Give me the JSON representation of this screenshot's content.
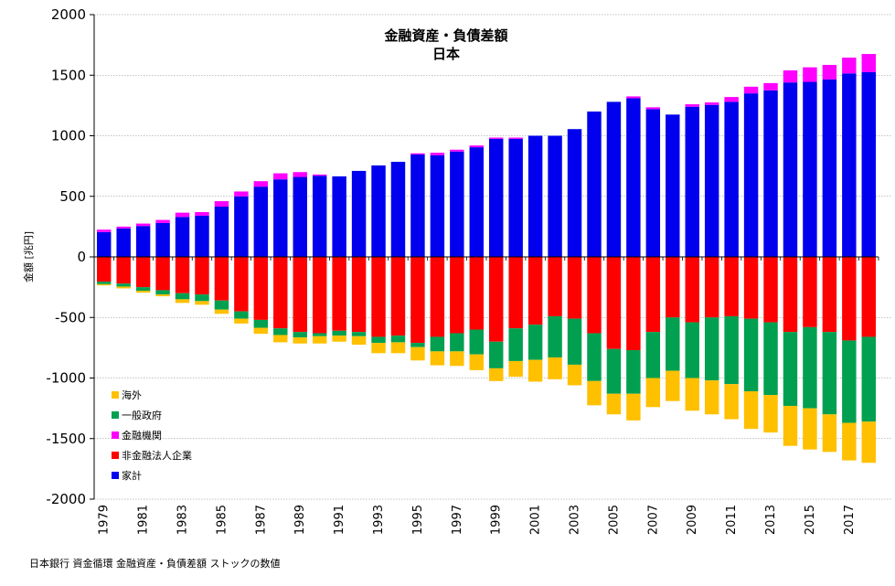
{
  "chart_data": {
    "type": "bar",
    "stacked": true,
    "title": "金融資産・負債差額",
    "subtitle": "日本",
    "ylabel": "金額 [兆円]",
    "xlabel": "",
    "ylim": [
      -2000,
      2000
    ],
    "yticks": [
      2000,
      1500,
      1000,
      500,
      0,
      -500,
      -1000,
      -1500,
      -2000
    ],
    "categories": [
      "1979",
      "1980",
      "1981",
      "1982",
      "1983",
      "1984",
      "1985",
      "1986",
      "1987",
      "1988",
      "1989",
      "1990",
      "1991",
      "1992",
      "1993",
      "1994",
      "1995",
      "1996",
      "1997",
      "1998",
      "1999",
      "2000",
      "2001",
      "2002",
      "2003",
      "2004",
      "2005",
      "2006",
      "2007",
      "2008",
      "2009",
      "2010",
      "2011",
      "2012",
      "2013",
      "2014",
      "2015",
      "2016",
      "2017",
      "2018"
    ],
    "xtick_labels": [
      "1979",
      "1981",
      "1983",
      "1985",
      "1987",
      "1989",
      "1991",
      "1993",
      "1995",
      "1997",
      "1999",
      "2001",
      "2003",
      "2005",
      "2007",
      "2009",
      "2011",
      "2013",
      "2015",
      "2017"
    ],
    "legend_position": "bottom-left",
    "legend": [
      "海外",
      "一般政府",
      "金融機関",
      "非金融法人企業",
      "家計"
    ],
    "series": [
      {
        "name": "家計",
        "color": "#0000ee",
        "values": [
          205,
          235,
          255,
          280,
          330,
          340,
          415,
          500,
          580,
          640,
          660,
          670,
          665,
          710,
          755,
          785,
          845,
          840,
          870,
          905,
          975,
          975,
          1000,
          1000,
          1055,
          1200,
          1280,
          1310,
          1220,
          1175,
          1240,
          1255,
          1280,
          1350,
          1375,
          1440,
          1445,
          1465,
          1515,
          1525
        ]
      },
      {
        "name": "金融機関",
        "color": "#ff00ff",
        "values": [
          20,
          15,
          20,
          25,
          35,
          30,
          45,
          40,
          45,
          50,
          40,
          10,
          0,
          0,
          0,
          0,
          10,
          20,
          15,
          15,
          10,
          10,
          0,
          0,
          0,
          0,
          0,
          15,
          15,
          0,
          20,
          20,
          40,
          55,
          60,
          100,
          120,
          120,
          130,
          150
        ]
      },
      {
        "name": "非金融法人企業",
        "color": "#ff0000",
        "values": [
          -205,
          -220,
          -250,
          -275,
          -300,
          -310,
          -360,
          -450,
          -520,
          -590,
          -620,
          -630,
          -610,
          -620,
          -660,
          -650,
          -710,
          -660,
          -630,
          -600,
          -700,
          -590,
          -560,
          -490,
          -510,
          -630,
          -760,
          -770,
          -620,
          -500,
          -540,
          -500,
          -490,
          -510,
          -540,
          -620,
          -580,
          -620,
          -690,
          -660
        ]
      },
      {
        "name": "一般政府",
        "color": "#00a050",
        "values": [
          -20,
          -25,
          -30,
          -35,
          -50,
          -55,
          -75,
          -60,
          -65,
          -55,
          -45,
          -25,
          -40,
          -35,
          -50,
          -55,
          -35,
          -120,
          -150,
          -205,
          -220,
          -270,
          -290,
          -340,
          -380,
          -395,
          -370,
          -360,
          -380,
          -440,
          -460,
          -520,
          -560,
          -600,
          -600,
          -610,
          -670,
          -680,
          -680,
          -700
        ]
      },
      {
        "name": "海外",
        "color": "#ffc000",
        "values": [
          -10,
          -15,
          -15,
          -15,
          -30,
          -30,
          -35,
          -40,
          -50,
          -60,
          -50,
          -60,
          -50,
          -70,
          -85,
          -90,
          -110,
          -115,
          -120,
          -130,
          -105,
          -130,
          -180,
          -180,
          -170,
          -200,
          -170,
          -220,
          -240,
          -250,
          -270,
          -280,
          -290,
          -310,
          -310,
          -330,
          -340,
          -310,
          -310,
          -340
        ]
      }
    ]
  },
  "source_note": "日本銀行 資金循環 金融資産・負債差額 ストックの数値"
}
